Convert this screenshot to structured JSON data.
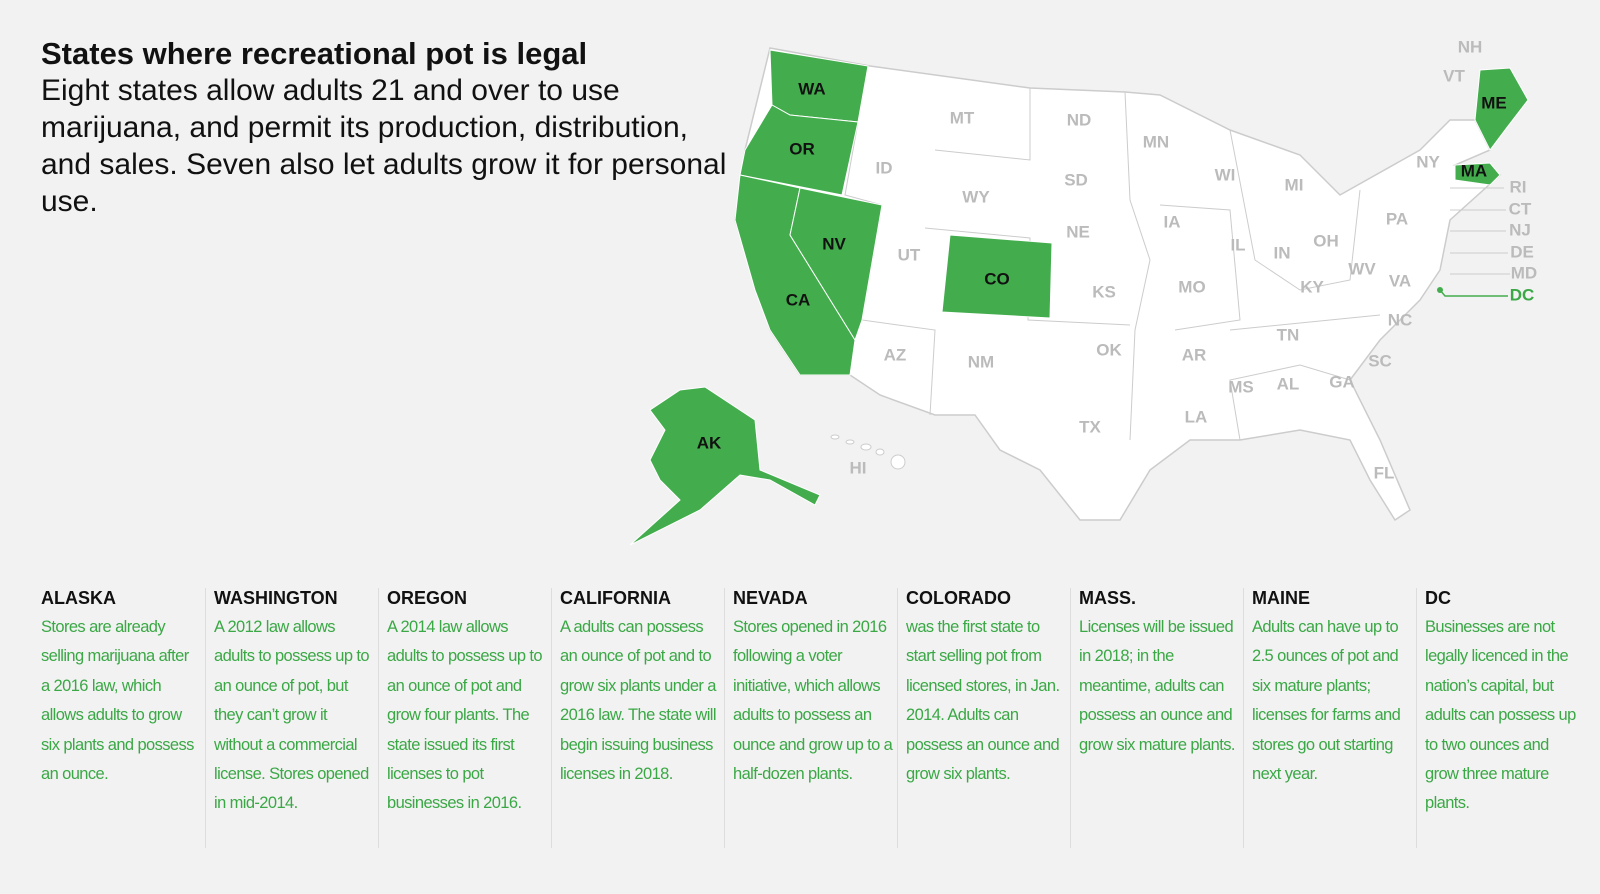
{
  "title": "States where recreational pot is legal",
  "subtitle": "Eight states allow adults 21 and over to use marijuana, and permit its production, distribution, and sales. Seven also let adults grow it for personal use.",
  "states": [
    {
      "abbr": "WA",
      "legal": true
    },
    {
      "abbr": "OR",
      "legal": true
    },
    {
      "abbr": "CA",
      "legal": true
    },
    {
      "abbr": "NV",
      "legal": true
    },
    {
      "abbr": "CO",
      "legal": true
    },
    {
      "abbr": "AK",
      "legal": true
    },
    {
      "abbr": "ME",
      "legal": true
    },
    {
      "abbr": "MA",
      "legal": true
    },
    {
      "abbr": "DC",
      "legal": true
    },
    {
      "abbr": "MT",
      "legal": false
    },
    {
      "abbr": "ND",
      "legal": false
    },
    {
      "abbr": "MN",
      "legal": false
    },
    {
      "abbr": "WI",
      "legal": false
    },
    {
      "abbr": "MI",
      "legal": false
    },
    {
      "abbr": "NY",
      "legal": false
    },
    {
      "abbr": "VT",
      "legal": false
    },
    {
      "abbr": "NH",
      "legal": false
    },
    {
      "abbr": "ID",
      "legal": false
    },
    {
      "abbr": "WY",
      "legal": false
    },
    {
      "abbr": "SD",
      "legal": false
    },
    {
      "abbr": "IA",
      "legal": false
    },
    {
      "abbr": "NE",
      "legal": false
    },
    {
      "abbr": "IL",
      "legal": false
    },
    {
      "abbr": "IN",
      "legal": false
    },
    {
      "abbr": "OH",
      "legal": false
    },
    {
      "abbr": "PA",
      "legal": false
    },
    {
      "abbr": "UT",
      "legal": false
    },
    {
      "abbr": "KS",
      "legal": false
    },
    {
      "abbr": "MO",
      "legal": false
    },
    {
      "abbr": "KY",
      "legal": false
    },
    {
      "abbr": "WV",
      "legal": false
    },
    {
      "abbr": "VA",
      "legal": false
    },
    {
      "abbr": "NC",
      "legal": false
    },
    {
      "abbr": "TN",
      "legal": false
    },
    {
      "abbr": "AZ",
      "legal": false
    },
    {
      "abbr": "NM",
      "legal": false
    },
    {
      "abbr": "OK",
      "legal": false
    },
    {
      "abbr": "AR",
      "legal": false
    },
    {
      "abbr": "MS",
      "legal": false
    },
    {
      "abbr": "AL",
      "legal": false
    },
    {
      "abbr": "GA",
      "legal": false
    },
    {
      "abbr": "SC",
      "legal": false
    },
    {
      "abbr": "LA",
      "legal": false
    },
    {
      "abbr": "TX",
      "legal": false
    },
    {
      "abbr": "FL",
      "legal": false
    },
    {
      "abbr": "HI",
      "legal": false
    },
    {
      "abbr": "RI",
      "legal": false
    },
    {
      "abbr": "CT",
      "legal": false
    },
    {
      "abbr": "NJ",
      "legal": false
    },
    {
      "abbr": "DE",
      "legal": false
    },
    {
      "abbr": "MD",
      "legal": false
    }
  ],
  "details": [
    {
      "heading": "ALASKA",
      "text": "Stores are already selling marijuana after a 2016 law, which allows adults to grow six plants and possess an ounce."
    },
    {
      "heading": "WASHINGTON",
      "text": "A 2012 law allows adults to possess up to an ounce of pot, but they can’t grow it without a commercial license. Stores opened in mid-2014."
    },
    {
      "heading": "OREGON",
      "text": "A 2014 law allows adults to possess up to an ounce of pot and grow four plants. The state issued its first licenses to pot businesses in 2016."
    },
    {
      "heading": "CALIFORNIA",
      "text": "A adults can possess an ounce of pot and to grow six plants under a 2016 law. The state will begin issuing business licenses in 2018."
    },
    {
      "heading": "NEVADA",
      "text": "Stores opened in 2016 following a voter initiative, which allows adults to possess an ounce and grow up to a half-dozen plants."
    },
    {
      "heading": "COLORADO",
      "text": "was the first state to start selling pot from licensed stores, in Jan. 2014. Adults can possess an ounce and grow six plants."
    },
    {
      "heading": "MASS.",
      "text": "Licenses will be issued in 2018; in the meantime, adults can possess an ounce and grow six mature plants."
    },
    {
      "heading": "MAINE",
      "text": "Adults can have up to 2.5 ounces of pot and six mature plants; licenses for farms and stores go out starting next year."
    },
    {
      "heading": "DC",
      "text": "Businesses are not legally licenced in the nation’s capital, but adults can possess up to two ounces and grow three mature plants."
    }
  ]
}
